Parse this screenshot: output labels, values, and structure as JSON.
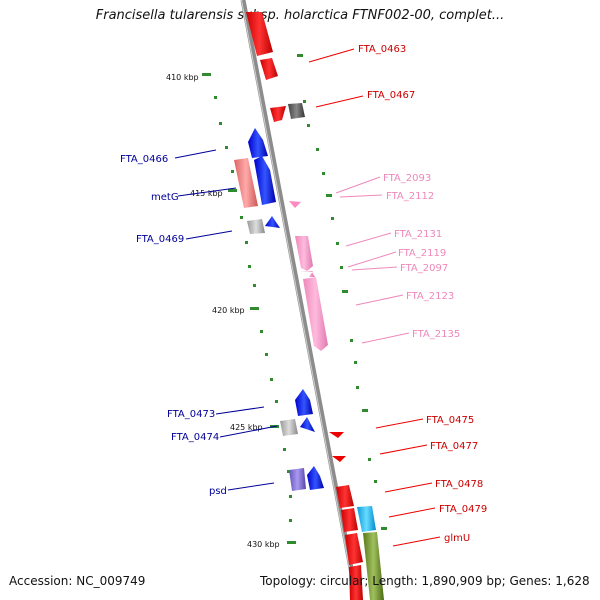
{
  "title": "Francisella tularensis subsp. holarctica FTNF002-00, complet...",
  "accession": "Accession: NC_009749",
  "summary": "Topology: circular; Length: 1,890,909 bp; Genes: 1,628",
  "scale_labels": [
    "410 kbp",
    "415 kbp",
    "420 kbp",
    "425 kbp",
    "430 kbp"
  ],
  "colors": {
    "forward_gene": "#0000ee",
    "forward_label": "#000099",
    "reverse_gene": "#ee0000",
    "reverse_label": "#cc0000",
    "pseudo_label": "#ee88bb",
    "pseudo_gene": "#ff99cc",
    "tick": "#2e8b2e",
    "backbone": "#8c8c8c"
  },
  "gene_labels": [
    {
      "text": "FTA_0463",
      "strand": "reverse"
    },
    {
      "text": "FTA_0467",
      "strand": "reverse"
    },
    {
      "text": "FTA_0466",
      "strand": "forward"
    },
    {
      "text": "metG",
      "strand": "forward"
    },
    {
      "text": "FTA_2093",
      "strand": "pseudo"
    },
    {
      "text": "FTA_2112",
      "strand": "pseudo"
    },
    {
      "text": "FTA_0469",
      "strand": "forward"
    },
    {
      "text": "FTA_2131",
      "strand": "pseudo"
    },
    {
      "text": "FTA_2119",
      "strand": "pseudo"
    },
    {
      "text": "FTA_2097",
      "strand": "pseudo"
    },
    {
      "text": "FTA_2123",
      "strand": "pseudo"
    },
    {
      "text": "FTA_2135",
      "strand": "pseudo"
    },
    {
      "text": "FTA_0473",
      "strand": "forward"
    },
    {
      "text": "FTA_0474",
      "strand": "forward"
    },
    {
      "text": "FTA_0475",
      "strand": "reverse"
    },
    {
      "text": "FTA_0477",
      "strand": "reverse"
    },
    {
      "text": "psd",
      "strand": "forward"
    },
    {
      "text": "FTA_0478",
      "strand": "reverse"
    },
    {
      "text": "FTA_0479",
      "strand": "reverse"
    },
    {
      "text": "glmU",
      "strand": "reverse"
    }
  ]
}
